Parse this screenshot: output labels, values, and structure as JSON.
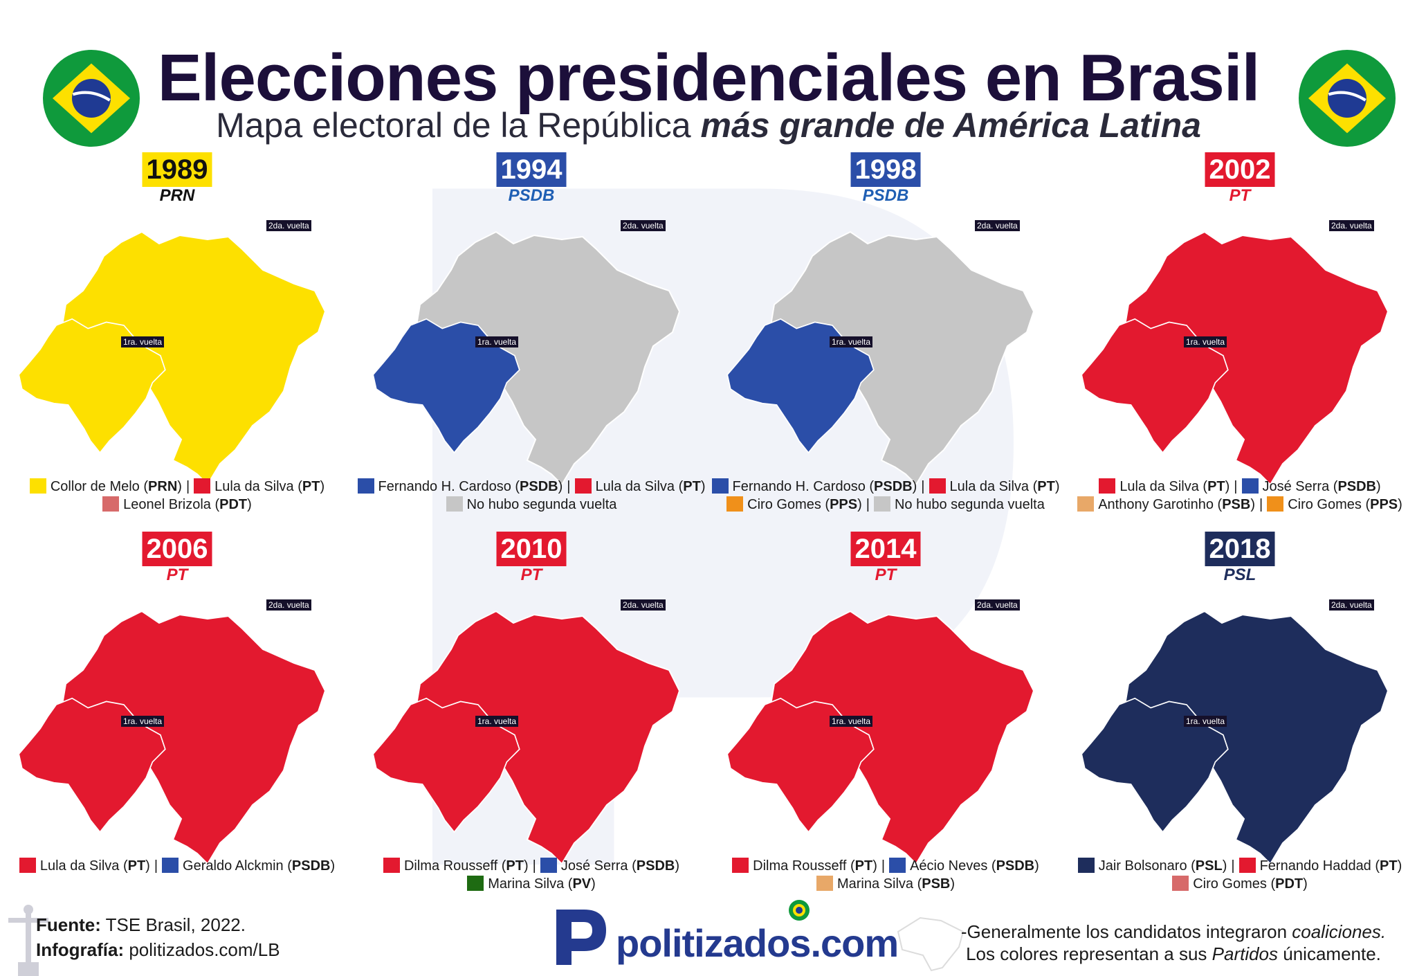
{
  "header": {
    "title": "Elecciones presidenciales en Brasil",
    "subtitle_plain": "Mapa electoral de la República",
    "subtitle_emph": "más grande de América Latina"
  },
  "round_labels": {
    "second": "2da. vuelta",
    "first": "1ra. vuelta"
  },
  "colors": {
    "PRN": "#fde000",
    "PT": "#e3192f",
    "PDT": "#d76a6a",
    "PSDB": "#2b4ea8",
    "PPS": "#f0901a",
    "PSB": "#e8a868",
    "PV": "#1e6b12",
    "PSL": "#1e2d5c",
    "none": "#c6c6c6"
  },
  "panels": [
    {
      "year": "1989",
      "year_bg": "#fde000",
      "year_color": "#111111",
      "logo": "PRN",
      "logo_color": "#111111",
      "runoff_fill": "PRN",
      "first_fill": "PRN",
      "legend": [
        [
          {
            "party": "PRN",
            "name": "Collor de Melo",
            "abbr": "PRN"
          },
          {
            "party": "PT",
            "name": "Lula da Silva",
            "abbr": "PT"
          }
        ],
        [
          {
            "party": "PDT",
            "name": "Leonel Brizola",
            "abbr": "PDT"
          }
        ]
      ]
    },
    {
      "year": "1994",
      "year_bg": "#2b4ea8",
      "year_color": "#ffffff",
      "logo": "PSDB",
      "logo_color": "#1f5fb4",
      "runoff_fill": "none",
      "first_fill": "PSDB",
      "legend": [
        [
          {
            "party": "PSDB",
            "name": "Fernando H. Cardoso",
            "abbr": "PSDB"
          },
          {
            "party": "PT",
            "name": "Lula da Silva",
            "abbr": "PT"
          }
        ],
        [
          {
            "party": "none",
            "name": "No hubo segunda vuelta",
            "abbr": ""
          }
        ]
      ]
    },
    {
      "year": "1998",
      "year_bg": "#2b4ea8",
      "year_color": "#ffffff",
      "logo": "PSDB",
      "logo_color": "#1f5fb4",
      "runoff_fill": "none",
      "first_fill": "PSDB",
      "legend": [
        [
          {
            "party": "PSDB",
            "name": "Fernando H. Cardoso",
            "abbr": "PSDB"
          },
          {
            "party": "PT",
            "name": "Lula da Silva",
            "abbr": "PT"
          }
        ],
        [
          {
            "party": "PPS",
            "name": "Ciro Gomes",
            "abbr": "PPS"
          },
          {
            "party": "none",
            "name": "No hubo segunda vuelta",
            "abbr": ""
          }
        ]
      ]
    },
    {
      "year": "2002",
      "year_bg": "#e3192f",
      "year_color": "#ffffff",
      "logo": "PT",
      "logo_color": "#e3192f",
      "runoff_fill": "PT",
      "first_fill": "PT",
      "legend": [
        [
          {
            "party": "PT",
            "name": "Lula da Silva",
            "abbr": "PT"
          },
          {
            "party": "PSDB",
            "name": "José Serra",
            "abbr": "PSDB"
          }
        ],
        [
          {
            "party": "PSB",
            "name": "Anthony Garotinho",
            "abbr": "PSB"
          },
          {
            "party": "PPS",
            "name": "Ciro Gomes",
            "abbr": "PPS"
          }
        ]
      ]
    },
    {
      "year": "2006",
      "year_bg": "#e3192f",
      "year_color": "#ffffff",
      "logo": "PT",
      "logo_color": "#e3192f",
      "runoff_fill": "PT",
      "first_fill": "PT",
      "legend": [
        [
          {
            "party": "PT",
            "name": "Lula da Silva",
            "abbr": "PT"
          },
          {
            "party": "PSDB",
            "name": "Geraldo Alckmin",
            "abbr": "PSDB"
          }
        ]
      ]
    },
    {
      "year": "2010",
      "year_bg": "#e3192f",
      "year_color": "#ffffff",
      "logo": "PT",
      "logo_color": "#e3192f",
      "runoff_fill": "PT",
      "first_fill": "PT",
      "legend": [
        [
          {
            "party": "PT",
            "name": "Dilma Rousseff",
            "abbr": "PT"
          },
          {
            "party": "PSDB",
            "name": "José Serra",
            "abbr": "PSDB"
          }
        ],
        [
          {
            "party": "PV",
            "name": "Marina Silva",
            "abbr": "PV"
          }
        ]
      ]
    },
    {
      "year": "2014",
      "year_bg": "#e3192f",
      "year_color": "#ffffff",
      "logo": "PT",
      "logo_color": "#e3192f",
      "runoff_fill": "PT",
      "first_fill": "PT",
      "legend": [
        [
          {
            "party": "PT",
            "name": "Dilma Rousseff",
            "abbr": "PT"
          },
          {
            "party": "PSDB",
            "name": "Aécio Neves",
            "abbr": "PSDB"
          }
        ],
        [
          {
            "party": "PSB",
            "name": "Marina Silva",
            "abbr": "PSB"
          }
        ]
      ]
    },
    {
      "year": "2018",
      "year_bg": "#1e2d5c",
      "year_color": "#ffffff",
      "logo": "PSL",
      "logo_color": "#1e2d5c",
      "runoff_fill": "PSL",
      "first_fill": "PSL",
      "legend": [
        [
          {
            "party": "PSL",
            "name": "Jair Bolsonaro",
            "abbr": "PSL"
          },
          {
            "party": "PT",
            "name": "Fernando Haddad",
            "abbr": "PT"
          }
        ],
        [
          {
            "party": "PDT",
            "name": "Ciro Gomes",
            "abbr": "PDT"
          }
        ]
      ]
    }
  ],
  "footer": {
    "source_label": "Fuente:",
    "source_value": "TSE Brasil, 2022.",
    "credit_label": "Infografía:",
    "credit_value": "politizados.com/LB",
    "brand": "politizados.com",
    "note_1a": "-Generalmente los candidatos integraron ",
    "note_1b": "coaliciones.",
    "note_2a": "Los colores representan a sus ",
    "note_2b": "Partidos",
    "note_2c": " únicamente."
  }
}
